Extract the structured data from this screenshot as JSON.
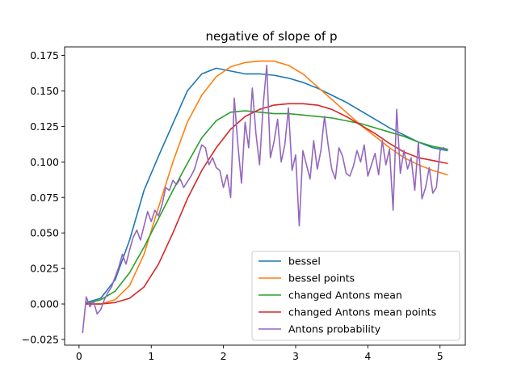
{
  "chart_data": {
    "type": "line",
    "title": "negative of slope of p",
    "xlabel": "",
    "ylabel": "",
    "xlim": [
      -0.2,
      5.35
    ],
    "ylim": [
      -0.029,
      0.181
    ],
    "xticks": [
      0,
      1,
      2,
      3,
      4,
      5
    ],
    "xtick_labels": [
      "0",
      "1",
      "2",
      "3",
      "4",
      "5"
    ],
    "yticks": [
      -0.025,
      0.0,
      0.025,
      0.05,
      0.075,
      0.1,
      0.125,
      0.15,
      0.175
    ],
    "ytick_labels": [
      "−0.025",
      "0.000",
      "0.025",
      "0.050",
      "0.075",
      "0.100",
      "0.125",
      "0.150",
      "0.175"
    ],
    "grid": false,
    "legend_position": "lower-right",
    "series": [
      {
        "name": "bessel",
        "color": "#1f77b4",
        "x": [
          0.1,
          0.3,
          0.5,
          0.7,
          0.9,
          1.1,
          1.3,
          1.5,
          1.7,
          1.9,
          2.1,
          2.3,
          2.5,
          2.7,
          2.9,
          3.1,
          3.3,
          3.5,
          3.7,
          3.9,
          4.1,
          4.3,
          4.5,
          4.7,
          4.9,
          5.1
        ],
        "y": [
          0.001,
          0.004,
          0.017,
          0.045,
          0.08,
          0.104,
          0.127,
          0.15,
          0.162,
          0.166,
          0.164,
          0.162,
          0.162,
          0.161,
          0.159,
          0.156,
          0.152,
          0.147,
          0.142,
          0.136,
          0.13,
          0.124,
          0.119,
          0.114,
          0.11,
          0.108
        ]
      },
      {
        "name": "bessel points",
        "color": "#ff7f0e",
        "x": [
          0.1,
          0.3,
          0.5,
          0.7,
          0.9,
          1.1,
          1.3,
          1.5,
          1.7,
          1.9,
          2.1,
          2.3,
          2.5,
          2.7,
          2.9,
          3.1,
          3.3,
          3.5,
          3.7,
          3.9,
          4.1,
          4.3,
          4.5,
          4.7,
          4.9,
          5.1
        ],
        "y": [
          0.0,
          0.0,
          0.003,
          0.013,
          0.035,
          0.068,
          0.1,
          0.128,
          0.147,
          0.16,
          0.167,
          0.17,
          0.171,
          0.171,
          0.168,
          0.162,
          0.153,
          0.144,
          0.135,
          0.126,
          0.118,
          0.11,
          0.103,
          0.098,
          0.094,
          0.091
        ]
      },
      {
        "name": "changed Antons mean",
        "color": "#2ca02c",
        "x": [
          0.1,
          0.3,
          0.5,
          0.7,
          0.9,
          1.1,
          1.3,
          1.5,
          1.7,
          1.9,
          2.1,
          2.3,
          2.5,
          2.7,
          2.9,
          3.1,
          3.3,
          3.5,
          3.7,
          3.9,
          4.1,
          4.3,
          4.5,
          4.7,
          4.9,
          5.1
        ],
        "y": [
          0.0,
          0.003,
          0.009,
          0.022,
          0.04,
          0.06,
          0.08,
          0.099,
          0.117,
          0.129,
          0.135,
          0.136,
          0.135,
          0.134,
          0.134,
          0.133,
          0.132,
          0.131,
          0.129,
          0.127,
          0.124,
          0.121,
          0.118,
          0.114,
          0.111,
          0.109
        ]
      },
      {
        "name": "changed Antons mean points",
        "color": "#d62728",
        "x": [
          0.1,
          0.3,
          0.5,
          0.7,
          0.9,
          1.1,
          1.3,
          1.5,
          1.7,
          1.9,
          2.1,
          2.3,
          2.5,
          2.7,
          2.9,
          3.1,
          3.3,
          3.5,
          3.7,
          3.9,
          4.1,
          4.3,
          4.5,
          4.7,
          4.9,
          5.1
        ],
        "y": [
          0.0,
          0.0,
          0.001,
          0.004,
          0.012,
          0.028,
          0.05,
          0.074,
          0.094,
          0.11,
          0.123,
          0.132,
          0.137,
          0.14,
          0.141,
          0.141,
          0.14,
          0.137,
          0.132,
          0.126,
          0.12,
          0.113,
          0.107,
          0.103,
          0.101,
          0.099
        ]
      },
      {
        "name": "Antons probability",
        "color": "#9467bd",
        "x": [
          0.05,
          0.1,
          0.15,
          0.2,
          0.25,
          0.3,
          0.35,
          0.4,
          0.45,
          0.5,
          0.55,
          0.6,
          0.65,
          0.7,
          0.75,
          0.8,
          0.85,
          0.9,
          0.95,
          1.0,
          1.05,
          1.1,
          1.15,
          1.2,
          1.25,
          1.3,
          1.35,
          1.4,
          1.45,
          1.5,
          1.55,
          1.6,
          1.65,
          1.7,
          1.75,
          1.8,
          1.85,
          1.9,
          1.95,
          2.0,
          2.05,
          2.1,
          2.15,
          2.2,
          2.25,
          2.3,
          2.35,
          2.4,
          2.45,
          2.5,
          2.55,
          2.6,
          2.65,
          2.7,
          2.75,
          2.8,
          2.85,
          2.9,
          2.95,
          3.0,
          3.05,
          3.1,
          3.15,
          3.2,
          3.25,
          3.3,
          3.35,
          3.4,
          3.45,
          3.5,
          3.55,
          3.6,
          3.65,
          3.7,
          3.75,
          3.8,
          3.85,
          3.9,
          3.95,
          4.0,
          4.05,
          4.1,
          4.15,
          4.2,
          4.25,
          4.3,
          4.35,
          4.4,
          4.45,
          4.5,
          4.55,
          4.6,
          4.65,
          4.7,
          4.75,
          4.8,
          4.85,
          4.9,
          4.95,
          5.0,
          5.05
        ],
        "y": [
          -0.02,
          0.005,
          -0.002,
          0.002,
          -0.007,
          -0.004,
          0.003,
          0.008,
          0.012,
          0.019,
          0.026,
          0.035,
          0.028,
          0.038,
          0.047,
          0.052,
          0.045,
          0.055,
          0.065,
          0.058,
          0.066,
          0.062,
          0.07,
          0.082,
          0.08,
          0.087,
          0.084,
          0.088,
          0.082,
          0.086,
          0.09,
          0.095,
          0.104,
          0.112,
          0.11,
          0.098,
          0.103,
          0.096,
          0.094,
          0.082,
          0.091,
          0.075,
          0.145,
          0.112,
          0.085,
          0.128,
          0.11,
          0.152,
          0.12,
          0.098,
          0.14,
          0.168,
          0.103,
          0.114,
          0.13,
          0.1,
          0.112,
          0.138,
          0.094,
          0.105,
          0.055,
          0.108,
          0.098,
          0.088,
          0.115,
          0.095,
          0.108,
          0.132,
          0.112,
          0.095,
          0.088,
          0.11,
          0.104,
          0.092,
          0.09,
          0.097,
          0.108,
          0.1,
          0.112,
          0.09,
          0.098,
          0.106,
          0.091,
          0.115,
          0.098,
          0.109,
          0.066,
          0.137,
          0.092,
          0.108,
          0.095,
          0.103,
          0.08,
          0.114,
          0.074,
          0.082,
          0.096,
          0.078,
          0.082,
          0.108,
          0.11
        ]
      }
    ]
  }
}
